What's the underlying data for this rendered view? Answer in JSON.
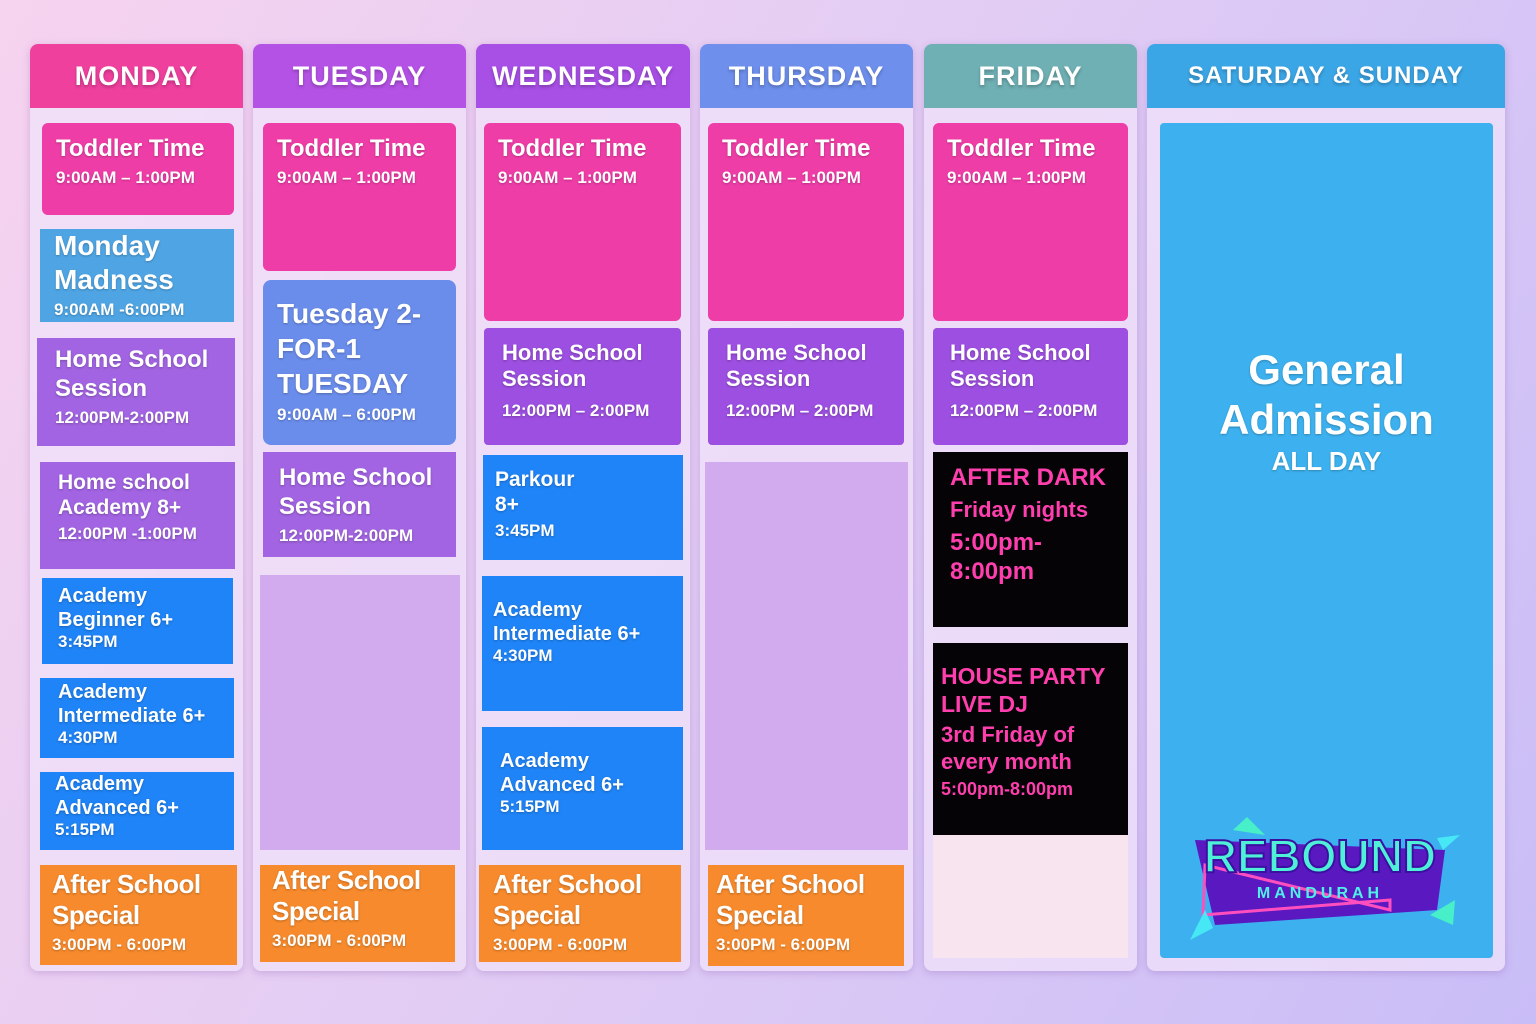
{
  "days": [
    {
      "name": "MONDAY",
      "color": "#f0409e",
      "events": [
        {
          "title": "Toddler Time",
          "time": "9:00AM – 1:00PM"
        },
        {
          "title": "Monday Madness",
          "time": "9:00AM -6:00PM"
        },
        {
          "title": "Home School Session",
          "time": "12:00PM-2:00PM"
        },
        {
          "title": "Home school Academy 8+",
          "time": "12:00PM -1:00PM"
        },
        {
          "title": "Academy Beginner 6+",
          "time": "3:45PM"
        },
        {
          "title": "Academy Intermediate 6+",
          "time": "4:30PM"
        },
        {
          "title": "Academy Advanced 6+",
          "time": "5:15PM"
        },
        {
          "title": "After School Special",
          "time": "3:00PM - 6:00PM"
        }
      ]
    },
    {
      "name": "TUESDAY",
      "color": "#b552e6",
      "events": [
        {
          "title": "Toddler Time",
          "time": "9:00AM – 1:00PM"
        },
        {
          "title": "Tuesday 2-FOR-1 TUESDAY",
          "time": "9:00AM – 6:00PM"
        },
        {
          "title": "Home School Session",
          "time": "12:00PM-2:00PM"
        },
        {
          "title": "After School Special",
          "time": "3:00PM - 6:00PM"
        }
      ]
    },
    {
      "name": "WEDNESDAY",
      "color": "#a84fe6",
      "events": [
        {
          "title": "Toddler Time",
          "time": "9:00AM – 1:00PM"
        },
        {
          "title": "Home School Session",
          "time": "12:00PM – 2:00PM"
        },
        {
          "title": "Parkour 8+",
          "time": "3:45PM"
        },
        {
          "title": "Academy Intermediate 6+",
          "time": "4:30PM"
        },
        {
          "title": "Academy Advanced 6+",
          "time": "5:15PM"
        },
        {
          "title": "After School Special",
          "time": "3:00PM - 6:00PM"
        }
      ]
    },
    {
      "name": "THURSDAY",
      "color": "#6e8fec",
      "events": [
        {
          "title": "Toddler Time",
          "time": "9:00AM – 1:00PM"
        },
        {
          "title": "Home School Session",
          "time": "12:00PM – 2:00PM"
        },
        {
          "title": "After School Special",
          "time": "3:00PM - 6:00PM"
        }
      ]
    },
    {
      "name": "FRIDAY",
      "color": "#6fb0b4",
      "events": [
        {
          "title": "Toddler Time",
          "time": "9:00AM – 1:00PM"
        },
        {
          "title": "Home School Session",
          "time": "12:00PM – 2:00PM"
        },
        {
          "title": "AFTER DARK",
          "sub": "Friday nights",
          "time": "5:00pm-8:00pm"
        },
        {
          "title": "HOUSE PARTY LIVE DJ",
          "sub": "3rd Friday of every month",
          "time": "5:00pm-8:00pm"
        }
      ]
    },
    {
      "name": "SATURDAY & SUNDAY",
      "color": "#3ba6e6",
      "events": [
        {
          "title": "General Admission",
          "time": "ALL DAY"
        }
      ]
    }
  ],
  "logo": {
    "text": "REBOUND",
    "sub": "MANDURAH"
  }
}
